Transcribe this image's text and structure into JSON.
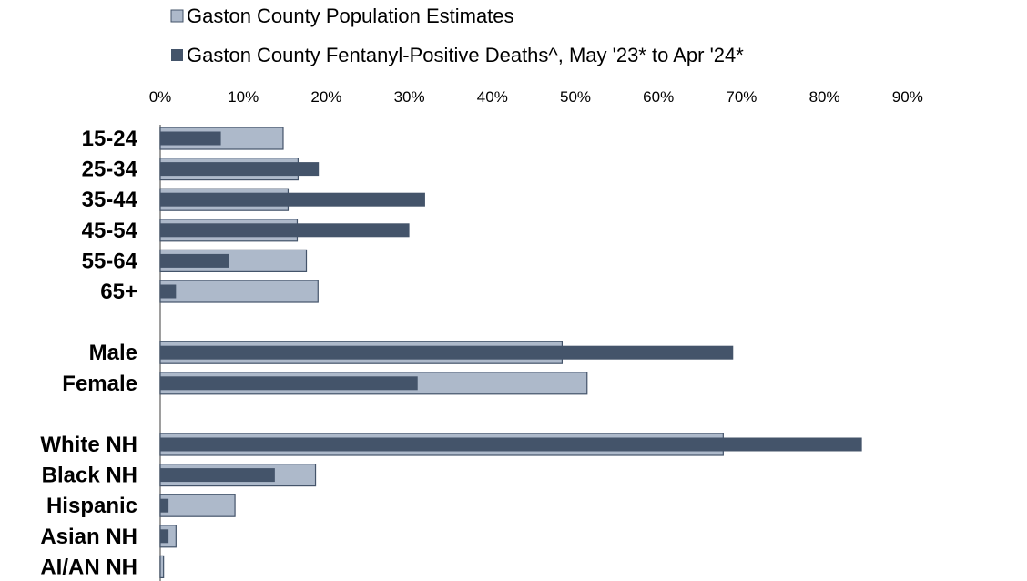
{
  "chart_data": {
    "type": "bar",
    "orientation": "horizontal",
    "xaxis_position": "top",
    "xlim": [
      0,
      90
    ],
    "x_unit": "%",
    "x_ticks": [
      "0%",
      "10%",
      "20%",
      "30%",
      "40%",
      "50%",
      "60%",
      "70%",
      "80%",
      "90%"
    ],
    "grid": false,
    "legend_position": "top",
    "categories": [
      "15-24",
      "25-34",
      "35-44",
      "45-54",
      "55-64",
      "65+",
      "Male",
      "Female",
      "White NH",
      "Black NH",
      "Hispanic",
      "Asian NH",
      "AI/AN NH"
    ],
    "groups": [
      [
        "15-24",
        "25-34",
        "35-44",
        "45-54",
        "55-64",
        "65+"
      ],
      [
        "Male",
        "Female"
      ],
      [
        "White NH",
        "Black NH",
        "Hispanic",
        "Asian NH",
        "AI/AN NH"
      ]
    ],
    "series": [
      {
        "name": "Gaston County Population Estimates",
        "color": "#adb9ca",
        "values": [
          14.8,
          16.6,
          15.4,
          16.5,
          17.6,
          19.0,
          48.4,
          51.4,
          67.8,
          18.7,
          9.0,
          1.9,
          0.4
        ]
      },
      {
        "name": "Gaston County Fentanyl-Positive Deaths^, May '23* to Apr '24*",
        "color": "#44546a",
        "values": [
          7.3,
          19.1,
          31.9,
          30.0,
          8.3,
          1.9,
          69.0,
          31.0,
          84.5,
          13.8,
          1.0,
          1.0,
          0
        ]
      }
    ]
  }
}
